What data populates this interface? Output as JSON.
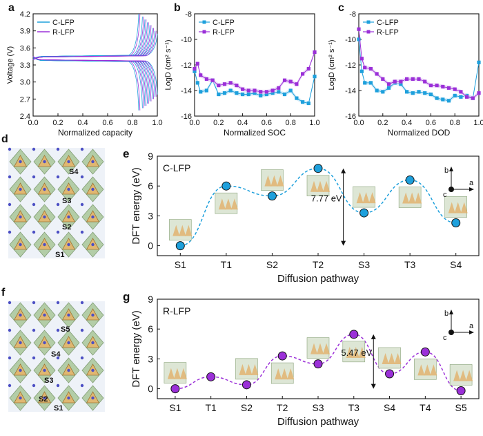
{
  "colors": {
    "c": "#1ea0dc",
    "r": "#9b30d8",
    "axis": "#111111",
    "band": "#bfe4f6",
    "bandR": "#e3c8f5"
  },
  "chart_data": [
    {
      "id": "a",
      "type": "line",
      "panel_label": "a",
      "xlabel": "Normalized capacity",
      "ylabel": "Voltage (V)",
      "xlim": [
        0,
        1
      ],
      "ylim": [
        2.4,
        4.2
      ],
      "xticks": [
        "0.0",
        "0.2",
        "0.4",
        "0.6",
        "0.8",
        "1.0"
      ],
      "yticks": [
        "2.4",
        "2.7",
        "3.0",
        "3.3",
        "3.6",
        "3.9",
        "4.2"
      ],
      "legend": [
        "C-LFP",
        "R-LFP"
      ],
      "legend_position": "top-left",
      "series": [
        {
          "name": "C-LFP",
          "charge_plateau": 3.45,
          "discharge_plateau": 3.38,
          "cycles_end_capacity": [
            0.85,
            0.88,
            0.9,
            0.92,
            0.94,
            0.96,
            0.98,
            1.0
          ]
        },
        {
          "name": "R-LFP",
          "charge_plateau": 3.44,
          "discharge_plateau": 3.39,
          "cycles_end_capacity": [
            0.86,
            0.89,
            0.91,
            0.93,
            0.95,
            0.97,
            0.99
          ]
        }
      ]
    },
    {
      "id": "b",
      "type": "line",
      "panel_label": "b",
      "xlabel": "Normalized SOC",
      "ylabel": "LogD (cm² s⁻¹)",
      "xlim": [
        0,
        1
      ],
      "ylim": [
        -16,
        -8
      ],
      "xticks": [
        "0.0",
        "0.2",
        "0.4",
        "0.6",
        "0.8",
        "1.0"
      ],
      "yticks": [
        "-8",
        "-10",
        "-12",
        "-14",
        "-16"
      ],
      "legend": [
        "C-LFP",
        "R-LFP"
      ],
      "legend_position": "top-left",
      "series": [
        {
          "name": "C-LFP",
          "x": [
            0.0,
            0.025,
            0.05,
            0.1,
            0.15,
            0.2,
            0.25,
            0.3,
            0.35,
            0.4,
            0.45,
            0.5,
            0.55,
            0.6,
            0.65,
            0.7,
            0.75,
            0.8,
            0.85,
            0.9,
            0.95,
            1.0
          ],
          "y": [
            -12.5,
            -13.4,
            -14.1,
            -14.0,
            -13.2,
            -14.3,
            -14.2,
            -14.0,
            -14.2,
            -14.3,
            -14.3,
            -14.2,
            -14.4,
            -14.3,
            -14.2,
            -14.1,
            -14.3,
            -14.0,
            -14.6,
            -14.9,
            -15.0,
            -12.9
          ]
        },
        {
          "name": "R-LFP",
          "x": [
            0.0,
            0.025,
            0.05,
            0.1,
            0.15,
            0.2,
            0.25,
            0.3,
            0.35,
            0.4,
            0.45,
            0.5,
            0.55,
            0.6,
            0.65,
            0.7,
            0.75,
            0.8,
            0.85,
            0.9,
            0.95,
            1.0
          ],
          "y": [
            -12.3,
            -11.9,
            -12.8,
            -13.1,
            -13.2,
            -13.6,
            -13.5,
            -13.4,
            -13.6,
            -13.9,
            -14.0,
            -14.0,
            -14.1,
            -14.1,
            -14.0,
            -13.8,
            -13.2,
            -13.3,
            -13.5,
            -12.7,
            -12.3,
            -11.0
          ]
        }
      ]
    },
    {
      "id": "c",
      "type": "line",
      "panel_label": "c",
      "xlabel": "Normalized DOD",
      "ylabel": "LogD (cm² s⁻¹)",
      "xlim": [
        0,
        1
      ],
      "ylim": [
        -16,
        -8
      ],
      "xticks": [
        "0.0",
        "0.2",
        "0.4",
        "0.6",
        "0.8",
        "1.0"
      ],
      "yticks": [
        "-8",
        "-10",
        "-12",
        "-14",
        "-16"
      ],
      "legend": [
        "C-LFP",
        "R-LFP"
      ],
      "legend_position": "top-left",
      "series": [
        {
          "name": "C-LFP",
          "x": [
            0.0,
            0.025,
            0.05,
            0.1,
            0.15,
            0.2,
            0.25,
            0.3,
            0.35,
            0.4,
            0.45,
            0.5,
            0.55,
            0.6,
            0.65,
            0.7,
            0.75,
            0.8,
            0.85,
            0.9,
            0.95,
            1.0
          ],
          "y": [
            -10.0,
            -12.5,
            -13.4,
            -13.4,
            -14.0,
            -14.1,
            -13.8,
            -13.4,
            -13.5,
            -14.1,
            -14.2,
            -14.1,
            -14.2,
            -14.3,
            -14.6,
            -14.7,
            -14.8,
            -14.4,
            -14.5,
            -14.4,
            -14.6,
            -11.8
          ]
        },
        {
          "name": "R-LFP",
          "x": [
            0.0,
            0.025,
            0.05,
            0.1,
            0.15,
            0.2,
            0.25,
            0.3,
            0.35,
            0.4,
            0.45,
            0.5,
            0.55,
            0.6,
            0.65,
            0.7,
            0.75,
            0.8,
            0.85,
            0.9,
            0.95,
            1.0
          ],
          "y": [
            -9.2,
            -11.5,
            -12.2,
            -12.3,
            -12.7,
            -13.1,
            -13.5,
            -13.3,
            -13.3,
            -13.1,
            -13.1,
            -13.1,
            -13.3,
            -13.6,
            -13.6,
            -13.7,
            -13.8,
            -13.9,
            -14.1,
            -14.5,
            -14.6,
            -14.2
          ]
        }
      ]
    },
    {
      "id": "e",
      "type": "line",
      "panel_label": "e",
      "inner_label": "C-LFP",
      "xlabel": "Diffusion pathway",
      "ylabel": "DFT energy (eV)",
      "ylim": [
        -1,
        9
      ],
      "yticks": [
        "0",
        "3",
        "6",
        "9"
      ],
      "categories": [
        "S1",
        "T1",
        "S2",
        "T2",
        "S3",
        "T3",
        "S4"
      ],
      "values": [
        0.0,
        6.0,
        5.0,
        7.77,
        3.3,
        6.6,
        2.3
      ],
      "annotation": "7.77 eV",
      "axes_labels": {
        "b": "b",
        "c": "c",
        "a": "a"
      }
    },
    {
      "id": "g",
      "type": "line",
      "panel_label": "g",
      "inner_label": "R-LFP",
      "xlabel": "Diffusion pathway",
      "ylabel": "DFT energy (eV)",
      "ylim": [
        -1,
        9
      ],
      "yticks": [
        "0",
        "3",
        "6",
        "9"
      ],
      "categories": [
        "S1",
        "T1",
        "S2",
        "T2",
        "S3",
        "T3",
        "S4",
        "T4",
        "S5"
      ],
      "values": [
        0.0,
        1.2,
        0.4,
        3.3,
        2.5,
        5.47,
        1.5,
        3.7,
        -0.2
      ],
      "annotation": "5.47 eV",
      "axes_labels": {
        "b": "b",
        "c": "c",
        "a": "a"
      }
    }
  ],
  "structures": {
    "d": {
      "panel_label": "d",
      "sites": [
        "S4",
        "S3",
        "S2",
        "S1"
      ]
    },
    "f": {
      "panel_label": "f",
      "sites": [
        "S5",
        "S4",
        "S3",
        "S2",
        "S1"
      ]
    }
  }
}
